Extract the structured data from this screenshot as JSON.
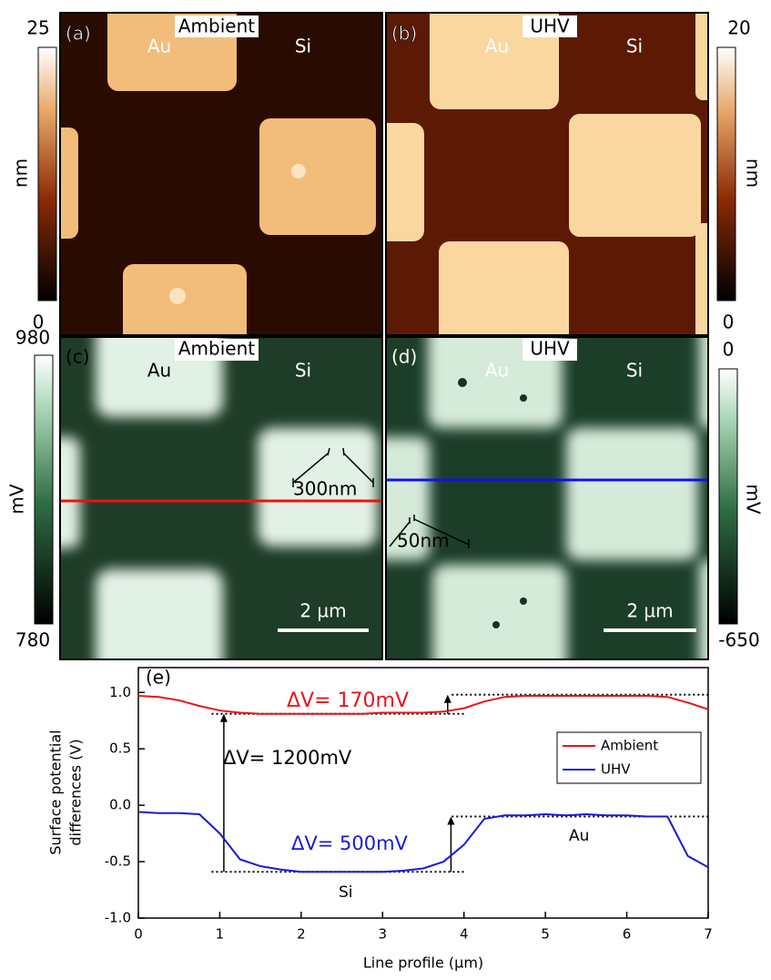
{
  "panels": [
    {
      "label": "(a)",
      "condition": "Ambient",
      "left_label": "Au",
      "right_label": "Si"
    },
    {
      "label": "(b)",
      "condition": "UHV",
      "left_label": "Au",
      "right_label": "Si"
    },
    {
      "label": "(c)",
      "condition": "Ambient",
      "left_label": "Au",
      "right_label": "Si",
      "scale_bar": "2 µm",
      "annotation": "300nm"
    },
    {
      "label": "(d)",
      "condition": "UHV",
      "left_label": "Au",
      "right_label": "Si",
      "scale_bar": "2 µm",
      "annotation": "50nm"
    }
  ],
  "colorbars": [
    {
      "unit": "nm",
      "max": 25,
      "min": 0
    },
    {
      "unit": "nm",
      "max": 20,
      "min": 0
    },
    {
      "unit": "mV",
      "max": 980,
      "min": 780
    },
    {
      "unit": "mV",
      "max": 0,
      "min": -650
    }
  ],
  "chart_data": {
    "type": "line",
    "panel_label": "(e)",
    "xlabel": "Line profile (µm)",
    "ylabel": [
      "Surface potential",
      "differences  (V)"
    ],
    "x": [
      0,
      0.25,
      0.5,
      0.75,
      1,
      1.25,
      1.5,
      1.75,
      2,
      2.25,
      2.5,
      2.75,
      3,
      3.25,
      3.5,
      3.75,
      4,
      4.25,
      4.5,
      4.75,
      5,
      5.25,
      5.5,
      5.75,
      6,
      6.25,
      6.5,
      6.75,
      7
    ],
    "series": [
      {
        "name": "Ambient",
        "color": "#e8141a",
        "values": [
          0.97,
          0.96,
          0.93,
          0.88,
          0.84,
          0.82,
          0.81,
          0.81,
          0.81,
          0.81,
          0.81,
          0.81,
          0.82,
          0.82,
          0.82,
          0.83,
          0.86,
          0.92,
          0.96,
          0.97,
          0.97,
          0.97,
          0.97,
          0.97,
          0.97,
          0.97,
          0.96,
          0.91,
          0.85
        ]
      },
      {
        "name": "UHV",
        "color": "#1a1ad6",
        "values": [
          -0.06,
          -0.07,
          -0.07,
          -0.08,
          -0.25,
          -0.48,
          -0.54,
          -0.57,
          -0.59,
          -0.59,
          -0.59,
          -0.59,
          -0.59,
          -0.58,
          -0.56,
          -0.5,
          -0.35,
          -0.12,
          -0.09,
          -0.09,
          -0.08,
          -0.09,
          -0.08,
          -0.09,
          -0.09,
          -0.1,
          -0.1,
          -0.45,
          -0.55
        ]
      }
    ],
    "xlim": [
      0,
      7
    ],
    "ylim": [
      -1,
      1.22
    ],
    "xticks": [
      0,
      1,
      2,
      3,
      4,
      5,
      6,
      7
    ],
    "yticks": [
      {
        "value": -1,
        "label": "-1.0"
      },
      -0.5,
      {
        "value": 0,
        "label": "0.0"
      },
      0.5,
      {
        "value": 1,
        "label": "1.0"
      }
    ],
    "reference_lines": [
      {
        "y": 0.81,
        "x": [
          0.9,
          4.0
        ]
      },
      {
        "y": 0.98,
        "x": [
          3.85,
          7
        ]
      },
      {
        "y": -0.59,
        "x": [
          0.9,
          4.0
        ]
      },
      {
        "y": -0.1,
        "x": [
          3.85,
          7
        ]
      }
    ],
    "annotations": [
      {
        "text": "ΔV= 170mV",
        "color": "#e8141a"
      },
      {
        "text": "ΔV= 1200mV",
        "color": "#000000"
      },
      {
        "text": "ΔV= 500mV",
        "color": "#1a1ad6"
      },
      {
        "text": "Si",
        "color": "#000000"
      },
      {
        "text": "Au",
        "color": "#000000"
      }
    ],
    "legend": "upper right"
  }
}
